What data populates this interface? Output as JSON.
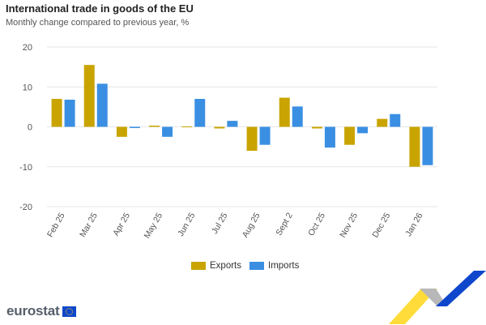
{
  "header": {
    "title": "International trade in goods of the EU",
    "subtitle": "Monthly change compared to previous year, %"
  },
  "legend": {
    "exports_label": "Exports",
    "imports_label": "Imports"
  },
  "brand": {
    "name": "eurostat"
  },
  "colors": {
    "exports": "#c9a400",
    "imports": "#3a8fe3",
    "grid": "#e6e6e6",
    "axis": "#cccccc"
  },
  "chart_data": {
    "type": "bar",
    "title": "International trade in goods of the EU",
    "subtitle": "Monthly change compared to previous year, %",
    "xlabel": "",
    "ylabel": "",
    "ylim": [
      -20,
      20
    ],
    "yticks": [
      20,
      10,
      0,
      -10,
      -20
    ],
    "categories": [
      "Feb 25",
      "Mar 25",
      "Apr 25",
      "May 25",
      "Jun 25",
      "Jul 25",
      "Aug 25",
      "Sept 2",
      "Oct 25",
      "Nov 25",
      "Dec 25",
      "Jan 26"
    ],
    "series": [
      {
        "name": "Exports",
        "values": [
          7.0,
          15.5,
          -2.5,
          0.3,
          0.1,
          -0.4,
          -6.0,
          7.3,
          -0.4,
          -4.5,
          2.0,
          -10.0
        ]
      },
      {
        "name": "Imports",
        "values": [
          6.8,
          10.8,
          -0.3,
          -2.5,
          7.0,
          1.5,
          -4.5,
          5.1,
          -5.2,
          -1.6,
          3.2,
          -9.6
        ]
      }
    ],
    "legend_position": "bottom"
  }
}
